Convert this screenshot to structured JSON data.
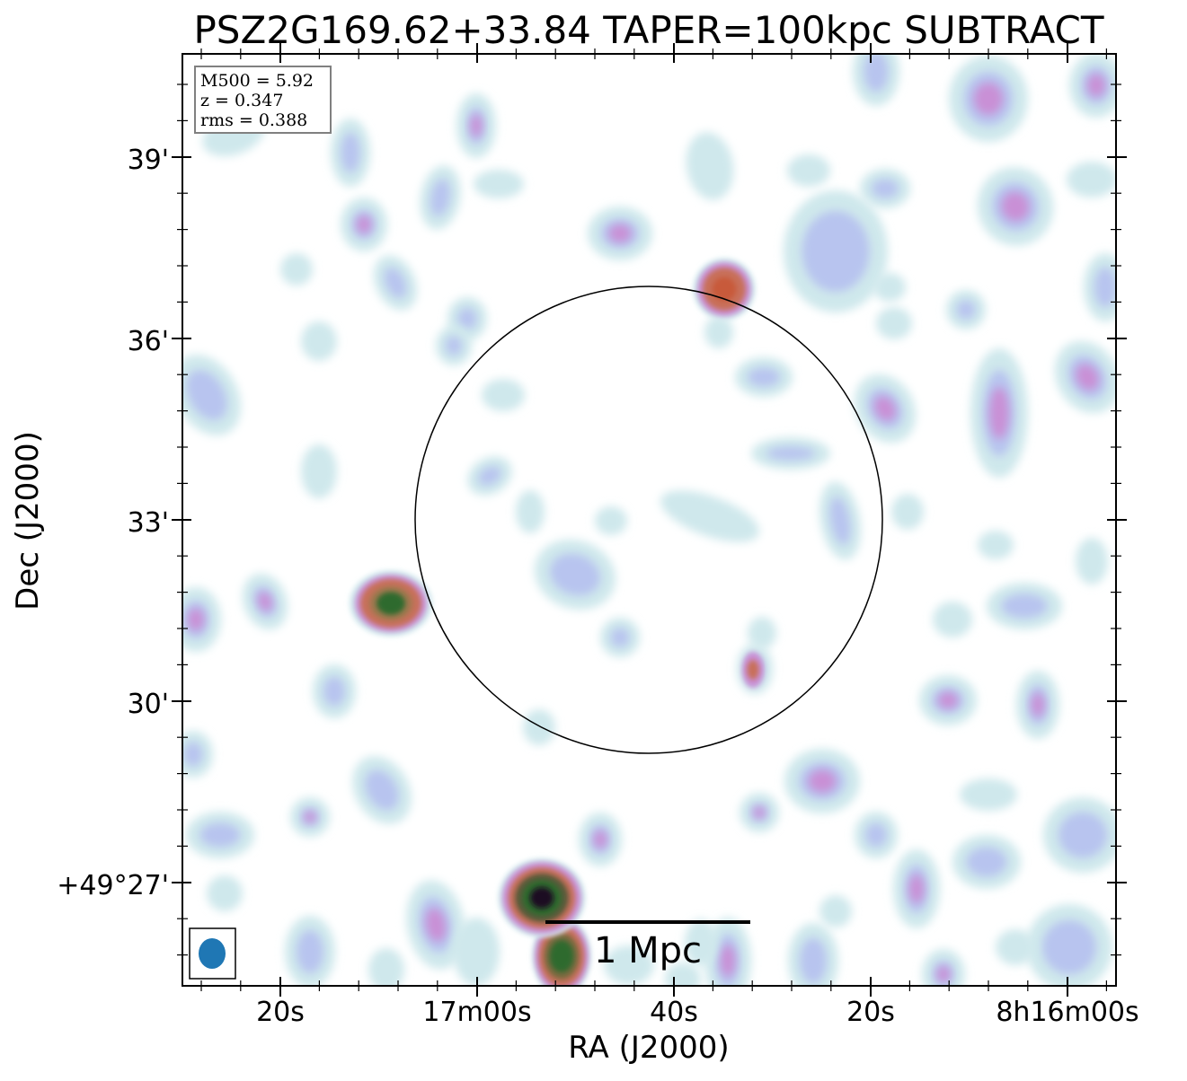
{
  "title": "PSZ2G169.62+33.84 TAPER=100kpc SUBTRACT",
  "xlabel": "RA (J2000)",
  "ylabel": "Dec (J2000)",
  "x_ticks": [
    "20s",
    "17m00s",
    "40s",
    "20s",
    "8h16m00s"
  ],
  "y_ticks": [
    "39'",
    "36'",
    "33'",
    "30'",
    "+49°27'"
  ],
  "info_box": {
    "line1": "M500 = 5.92",
    "line2": "z = 0.347",
    "line3": "rms = 0.388"
  },
  "scale_bar": {
    "label": "1 Mpc"
  },
  "colors": {
    "beam": "#1f77b4",
    "faint_emission": "#cfe8ec",
    "medium_emission": "#b8c4ef",
    "bright_emission": "#c990d6",
    "strong_emission": "#c8705a",
    "core_emission": "#2f6a2e",
    "peak_emission": "#1a0a22"
  }
}
